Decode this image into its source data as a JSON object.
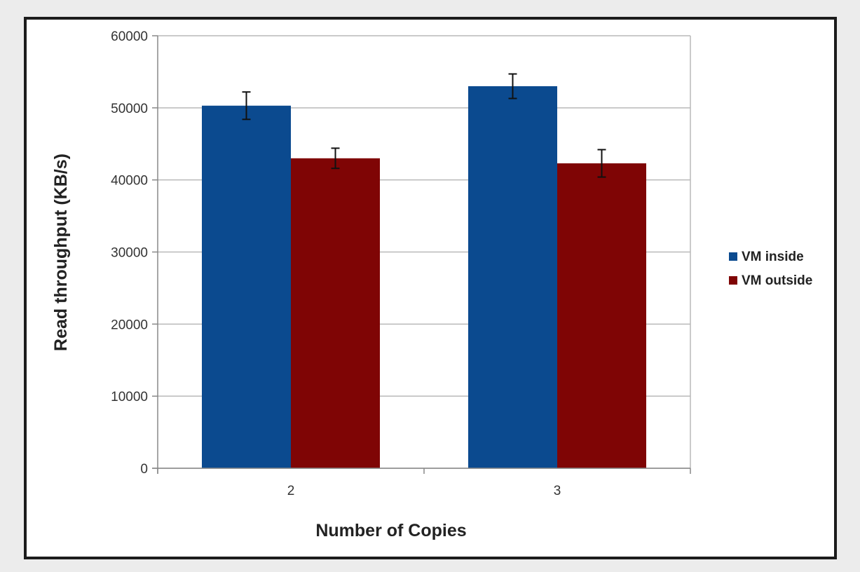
{
  "chart_data": {
    "type": "bar",
    "categories": [
      "2",
      "3"
    ],
    "series": [
      {
        "name": "VM inside",
        "values": [
          50300,
          53000
        ],
        "error": [
          1900,
          1700
        ],
        "color": "#0b4a8f"
      },
      {
        "name": "VM outside",
        "values": [
          43000,
          42300
        ],
        "error": [
          1400,
          1900
        ],
        "color": "#7f0505"
      }
    ],
    "xlabel": "Number of Copies",
    "ylabel": "Read throughput (KB/s)",
    "ylim": [
      0,
      60000
    ],
    "yticks": [
      "0",
      "10000",
      "20000",
      "30000",
      "40000",
      "50000",
      "60000"
    ],
    "grid": true,
    "legend_position": "right"
  }
}
